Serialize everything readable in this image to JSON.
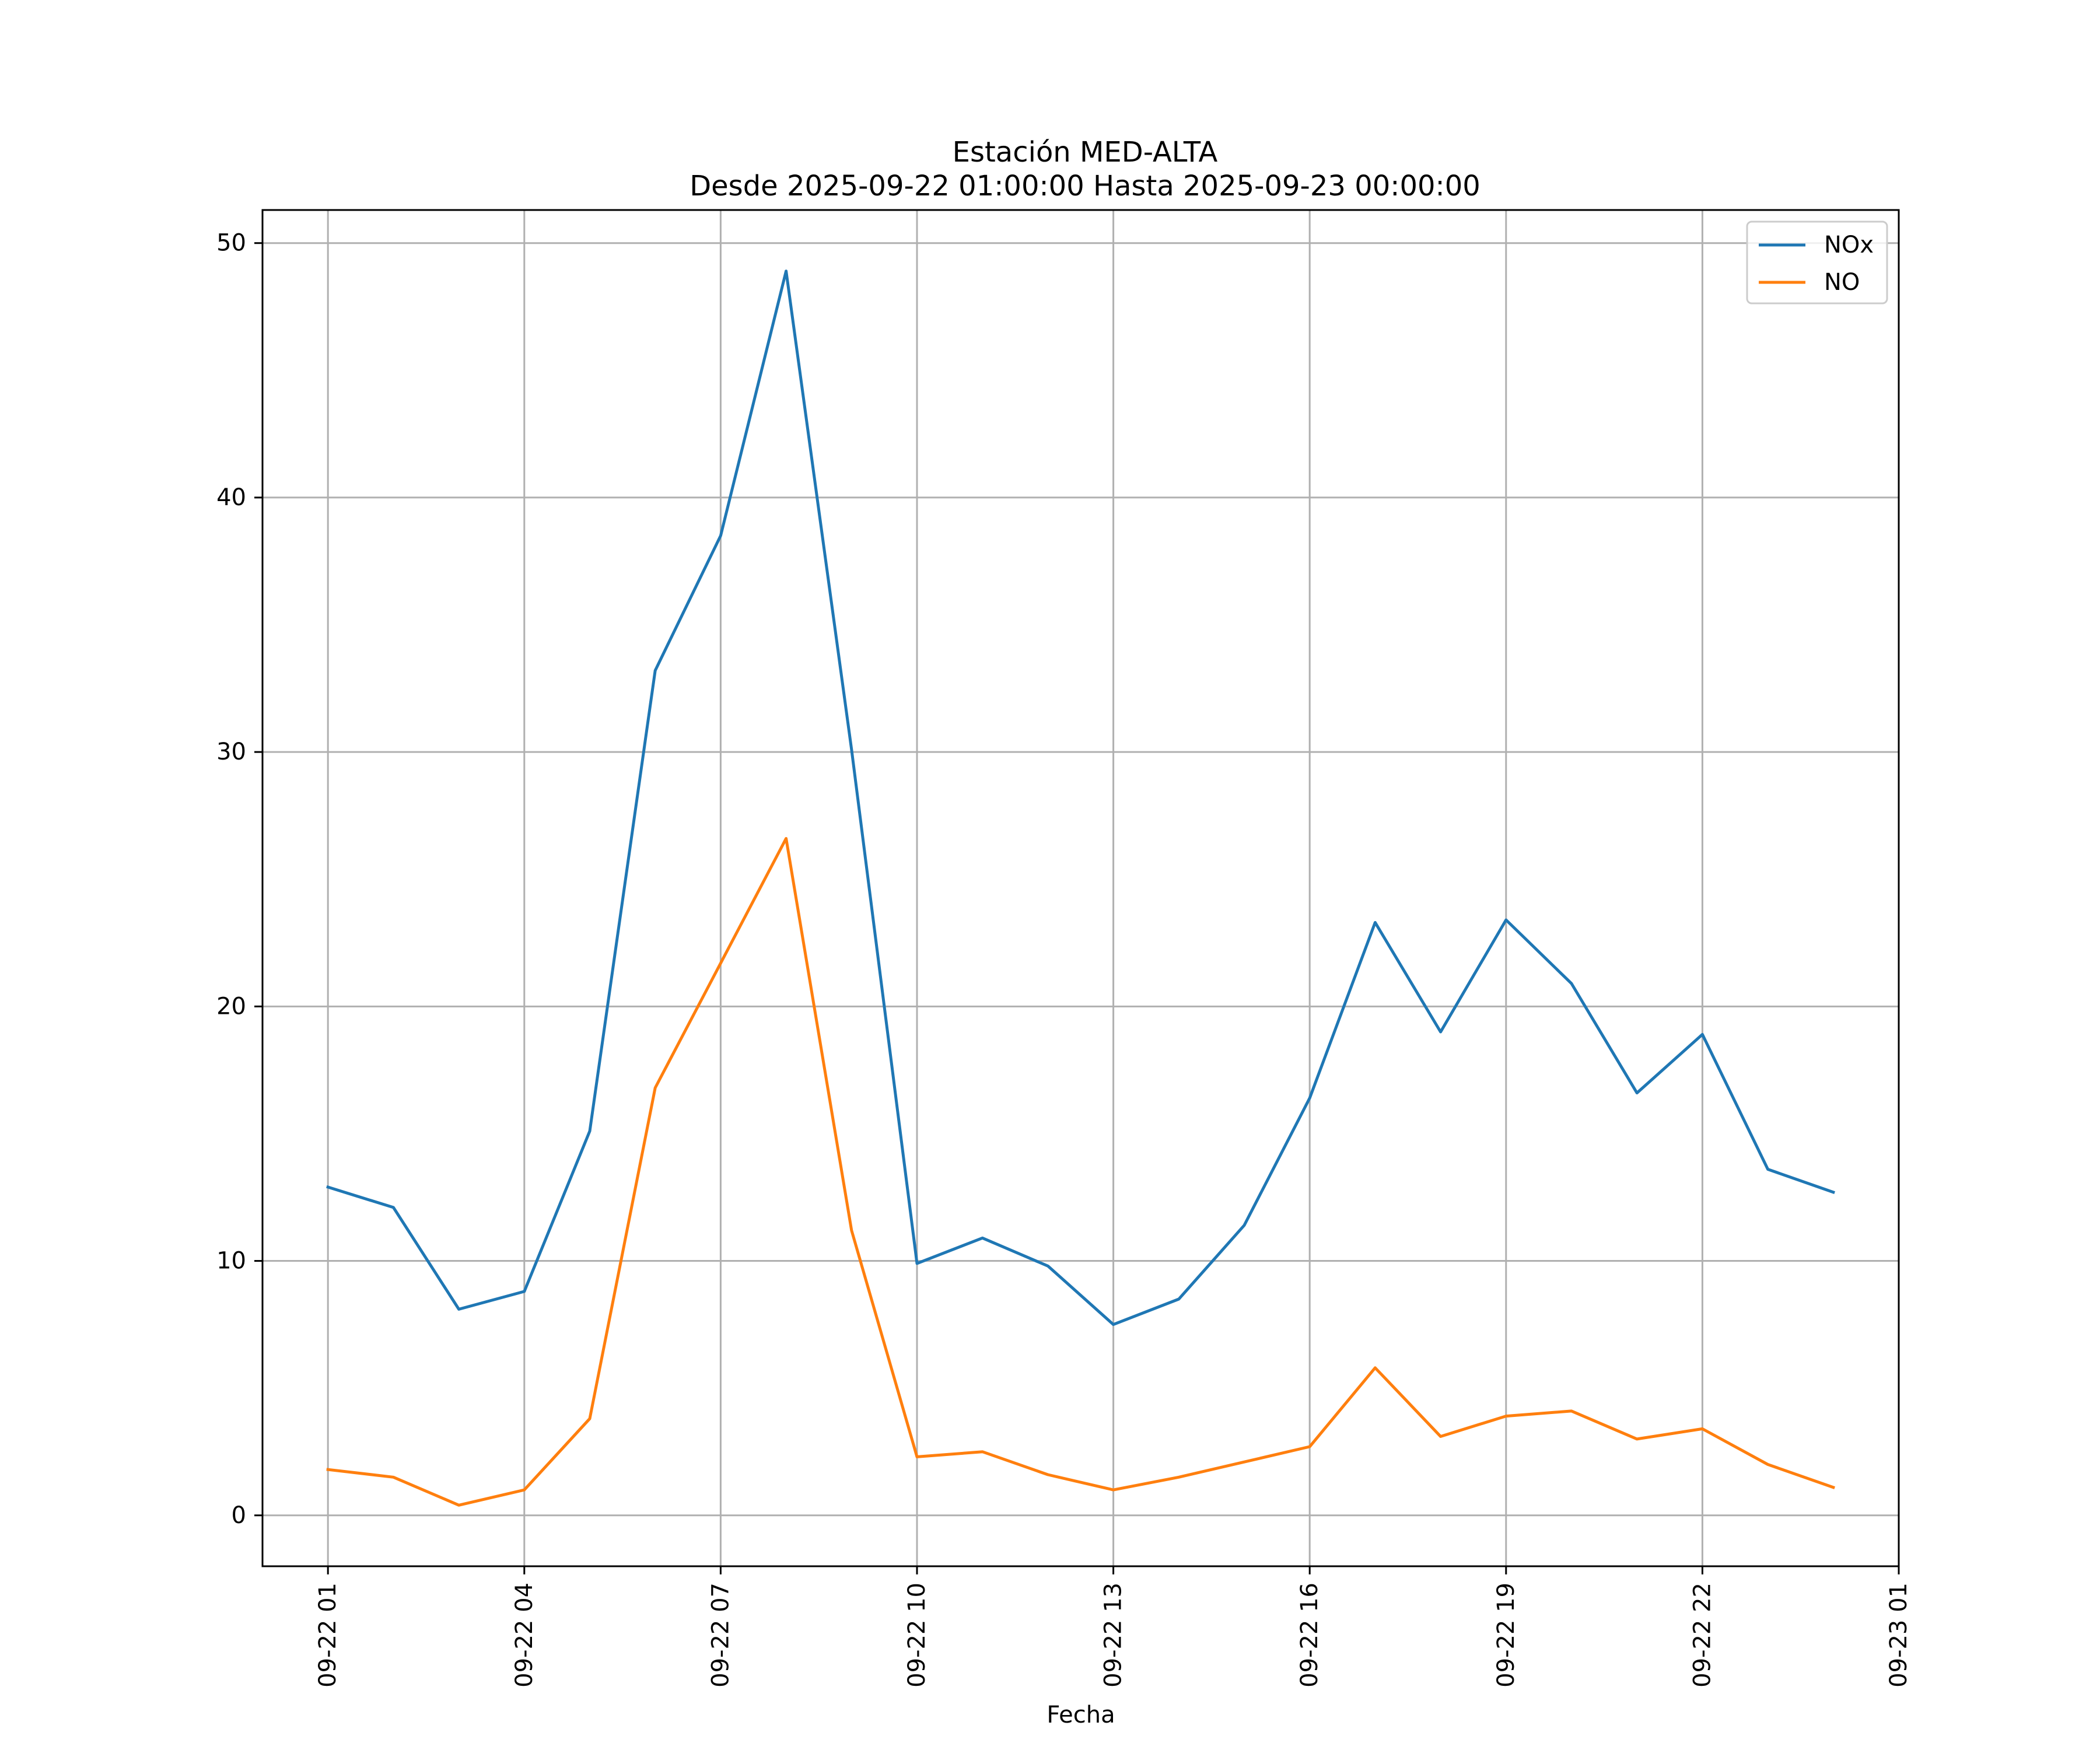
{
  "chart_data": {
    "type": "line",
    "title": "Estación MED-ALTA",
    "subtitle": "Desde 2025-09-22 01:00:00 Hasta 2025-09-23 00:00:00",
    "xlabel": "Fecha",
    "ylabel": "",
    "x": [
      "2025-09-22 01:00",
      "2025-09-22 02:00",
      "2025-09-22 03:00",
      "2025-09-22 04:00",
      "2025-09-22 05:00",
      "2025-09-22 06:00",
      "2025-09-22 07:00",
      "2025-09-22 08:00",
      "2025-09-22 09:00",
      "2025-09-22 10:00",
      "2025-09-22 11:00",
      "2025-09-22 12:00",
      "2025-09-22 13:00",
      "2025-09-22 14:00",
      "2025-09-22 15:00",
      "2025-09-22 16:00",
      "2025-09-22 17:00",
      "2025-09-22 18:00",
      "2025-09-22 19:00",
      "2025-09-22 20:00",
      "2025-09-22 21:00",
      "2025-09-22 22:00",
      "2025-09-22 23:00",
      "2025-09-23 00:00"
    ],
    "series": [
      {
        "name": "NOx",
        "color": "#1f77b4",
        "values": [
          12.9,
          12.1,
          8.1,
          8.8,
          15.1,
          33.2,
          38.5,
          48.9,
          30.1,
          9.9,
          10.9,
          9.8,
          7.5,
          8.5,
          11.4,
          16.4,
          23.3,
          19.0,
          23.4,
          20.9,
          16.6,
          18.9,
          13.6,
          12.7
        ]
      },
      {
        "name": "NO",
        "color": "#ff7f0e",
        "values": [
          1.8,
          1.5,
          0.4,
          1.0,
          3.8,
          16.8,
          21.7,
          26.6,
          11.2,
          2.3,
          2.5,
          1.6,
          1.0,
          1.5,
          2.1,
          2.7,
          5.8,
          3.1,
          3.9,
          4.1,
          3.0,
          3.4,
          2.0,
          1.1
        ]
      }
    ],
    "xlim": [
      "2025-09-22 00:00",
      "2025-09-23 01:00"
    ],
    "ylim": [
      -2,
      51.3
    ],
    "xticks": [
      "2025-09-22 01:00",
      "2025-09-22 04:00",
      "2025-09-22 07:00",
      "2025-09-22 10:00",
      "2025-09-22 13:00",
      "2025-09-22 16:00",
      "2025-09-22 19:00",
      "2025-09-22 22:00",
      "2025-09-23 01:00"
    ],
    "xtick_labels": [
      "09-22 01",
      "09-22 04",
      "09-22 07",
      "09-22 10",
      "09-22 13",
      "09-22 16",
      "09-22 19",
      "09-22 22",
      "09-23 01"
    ],
    "yticks": [
      0,
      10,
      20,
      30,
      40,
      50
    ],
    "ytick_labels": [
      "0",
      "10",
      "20",
      "30",
      "40",
      "50"
    ],
    "grid": true,
    "legend": "top-right"
  }
}
